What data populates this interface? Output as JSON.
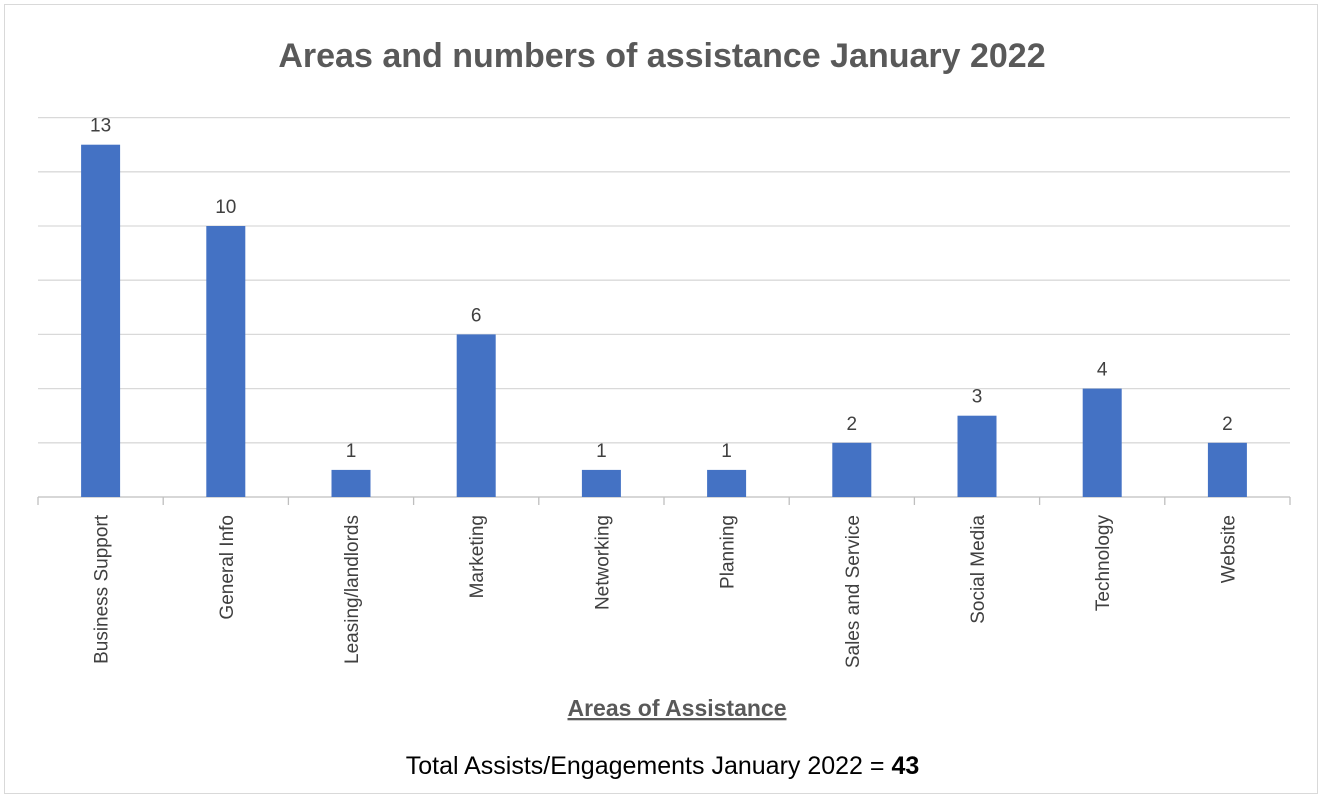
{
  "chart_data": {
    "type": "bar",
    "title": "Areas and numbers of assistance January 2022",
    "xlabel": "Areas of Assistance",
    "ylabel": "",
    "categories": [
      "Business Support",
      "General Info",
      "Leasing/landlords",
      "Marketing",
      "Networking",
      "Planning",
      "Sales and Service",
      "Social Media",
      "Technology",
      "Website"
    ],
    "values": [
      13,
      10,
      1,
      6,
      1,
      1,
      2,
      3,
      4,
      2
    ],
    "data_labels": [
      "13",
      "10",
      "1",
      "6",
      "1",
      "1",
      "2",
      "3",
      "4",
      "2"
    ],
    "ylim": [
      0,
      14
    ],
    "grid": true,
    "legend": "none",
    "bar_color": "#4472c4"
  },
  "footer": {
    "prefix": "Total Assists/Engagements January 2022 = ",
    "total": "43"
  }
}
